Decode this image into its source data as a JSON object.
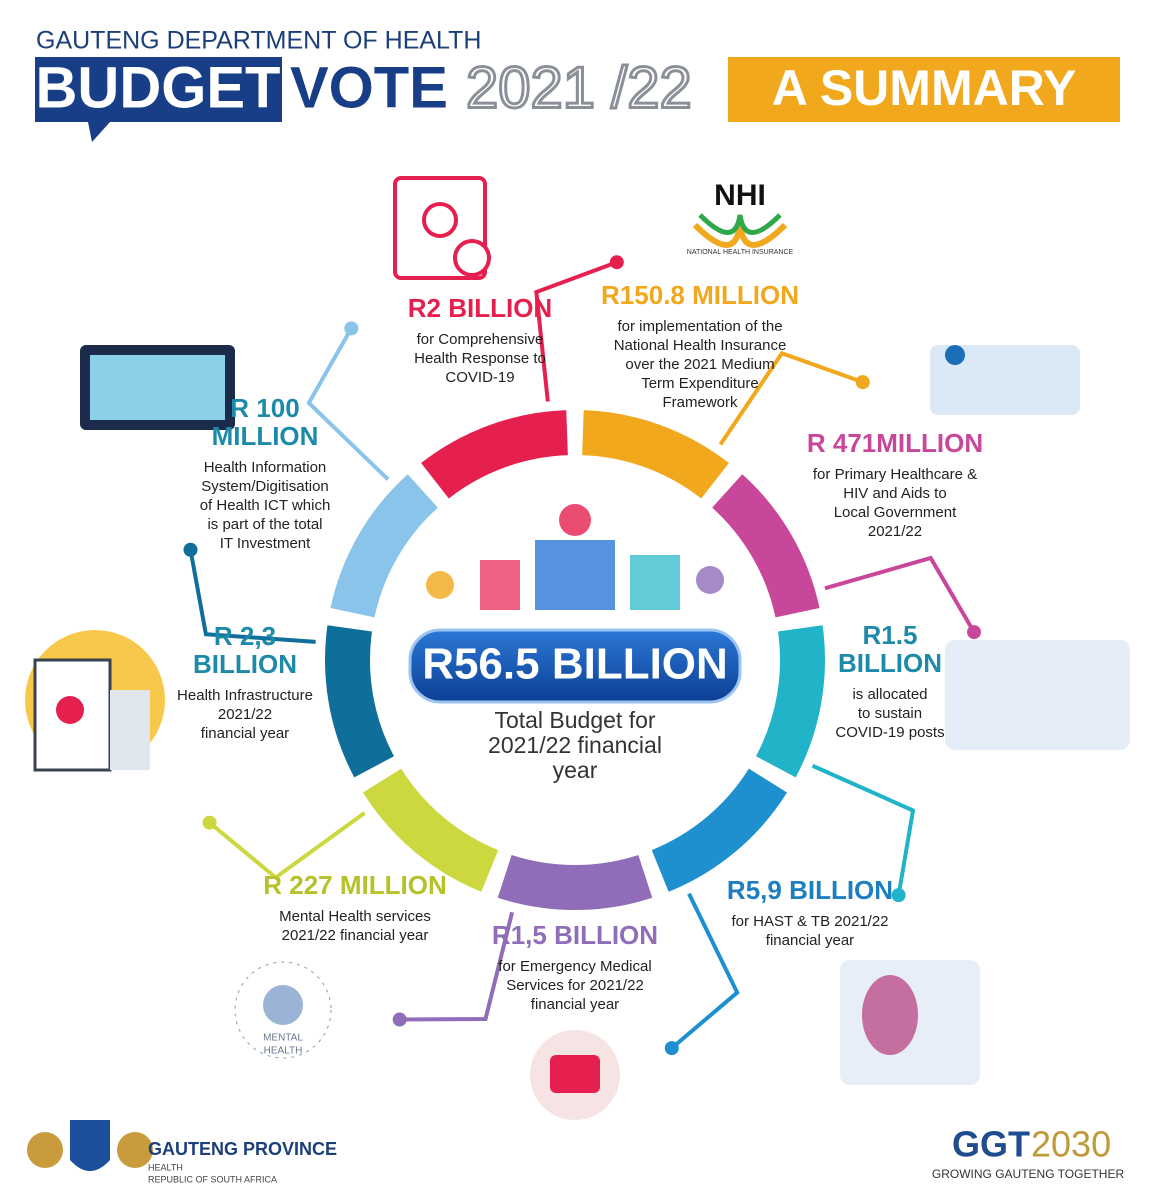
{
  "header": {
    "department": "GAUTENG DEPARTMENT OF HEALTH",
    "budget": "BUDGET",
    "vote": "VOTE",
    "year": "2021 /22",
    "summary": "A SUMMARY"
  },
  "center": {
    "total": "R56.5 BILLION",
    "caption": [
      "Total Budget for",
      "2021/22 financial",
      "year"
    ]
  },
  "items": [
    {
      "amount": [
        "R2 BILLION"
      ],
      "lines": [
        "for Comprehensive",
        "Health Response to",
        "COVID-19"
      ]
    },
    {
      "amount": [
        "R150.8 MILLION"
      ],
      "lines": [
        "for implementation of the",
        "National Health Insurance",
        "over the 2021 Medium",
        "Term Expenditure",
        "Framework"
      ]
    },
    {
      "amount": [
        "R 471MILLION"
      ],
      "lines": [
        "for Primary Healthcare &",
        "HIV and Aids to",
        "Local Government",
        "2021/22"
      ]
    },
    {
      "amount": [
        "R1.5",
        "BILLION"
      ],
      "lines": [
        "is allocated",
        "to sustain",
        "COVID-19 posts"
      ]
    },
    {
      "amount": [
        "R5,9 BILLION"
      ],
      "lines": [
        "for HAST & TB 2021/22",
        "financial year"
      ]
    },
    {
      "amount": [
        "R1,5 BILLION"
      ],
      "lines": [
        "for Emergency Medical",
        "Services for 2021/22",
        "financial year"
      ]
    },
    {
      "amount": [
        "R 227 MILLION"
      ],
      "lines": [
        "Mental Health services",
        "2021/22 financial year"
      ]
    },
    {
      "amount": [
        "R 2,3",
        "BILLION"
      ],
      "lines": [
        "Health Infrastructure",
        "2021/22",
        "financial year"
      ]
    },
    {
      "amount": [
        "R 100",
        "MILLION"
      ],
      "lines": [
        "Health Information",
        "System/Digitisation",
        "of Health ICT which",
        "is part of the total",
        "IT Investment"
      ]
    }
  ],
  "nhi_logo": {
    "mark": "NHI",
    "name": "NATIONAL HEALTH INSURANCE"
  },
  "mental_health_icon": {
    "label": [
      "MENTAL",
      "HEALTH"
    ]
  },
  "footer": {
    "province": "GAUTENG PROVINCE",
    "department": "HEALTH",
    "country": "REPUBLIC OF SOUTH AFRICA",
    "ggt": "GGT",
    "ggt_year": "2030",
    "tagline": "GROWING GAUTENG TOGETHER"
  }
}
